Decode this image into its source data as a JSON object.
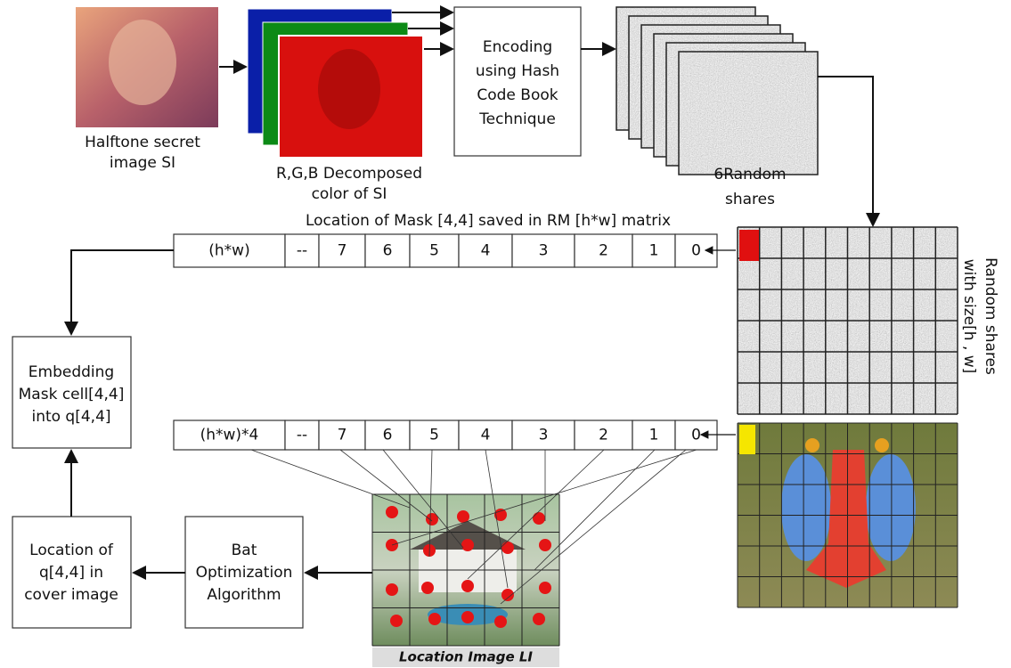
{
  "secret_image": {
    "caption": [
      "Halftone secret",
      "image SI"
    ]
  },
  "decomposed": {
    "caption": [
      "R,G,B Decomposed",
      "color of SI"
    ]
  },
  "encoding": {
    "label": [
      "Encoding",
      "using Hash",
      "Code Book",
      "Technique"
    ]
  },
  "shares": {
    "caption": [
      "6Random",
      "shares"
    ]
  },
  "mask_row": {
    "title": "Location of Mask [4,4] saved in RM [h*w] matrix",
    "cells": [
      "(h*w)",
      "--",
      "7",
      "6",
      "5",
      "4",
      "3",
      "2",
      "1",
      "0"
    ]
  },
  "random_shares_grid": {
    "caption": [
      "Random shares",
      "with size[h , w]"
    ]
  },
  "embedding": {
    "label": [
      "Embedding",
      "Mask cell[4,4]",
      "into q[4,4]"
    ]
  },
  "cover_row": {
    "cells": [
      "(h*w)*4",
      "--",
      "7",
      "6",
      "5",
      "4",
      "3",
      "2",
      "1",
      "0"
    ]
  },
  "location_q": {
    "label": [
      "Location of",
      "q[4,4] in",
      "cover image"
    ]
  },
  "bat": {
    "label": [
      "Bat",
      "Optimization",
      "Algorithm"
    ]
  },
  "location_image": {
    "caption": "Location Image LI"
  }
}
